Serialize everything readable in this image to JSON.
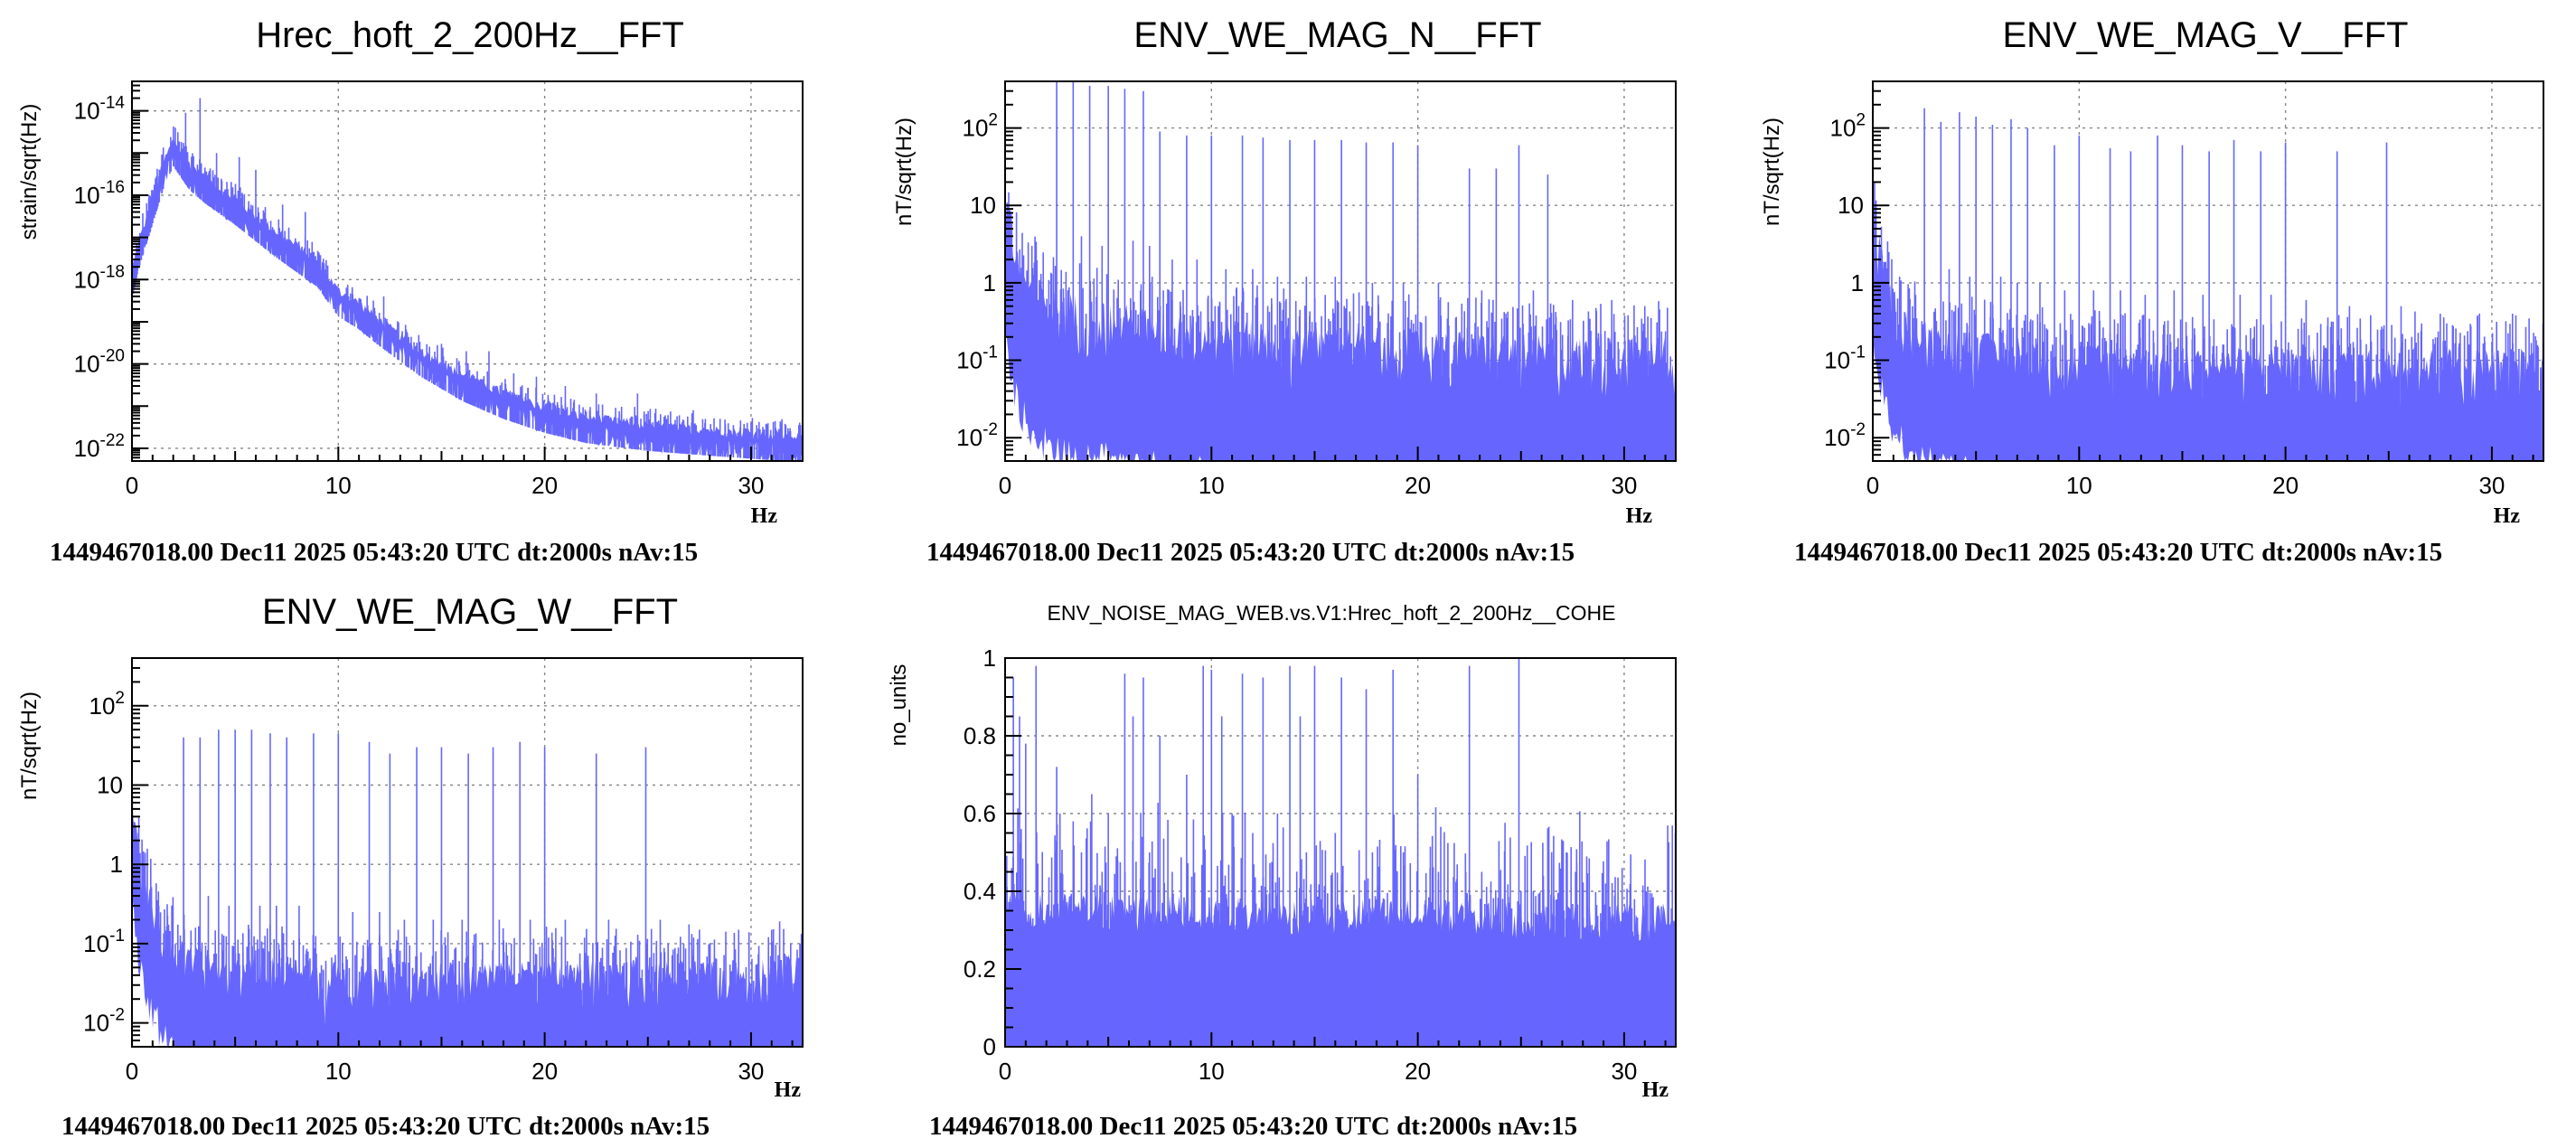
{
  "footer_text": "1449467018.00 Dec11 2025 05:43:20 UTC dt:2000s nAv:15",
  "series_color": "#6666ff",
  "chart_data": [
    {
      "id": "hrec",
      "type": "line",
      "title": "Hrec_hoft_2_200Hz__FFT",
      "ylabel": "strain/sqrt(Hz)",
      "xlabel": "Hz",
      "yscale": "log",
      "xlim": [
        0,
        32.5
      ],
      "ylim": [
        5e-23,
        5e-14
      ],
      "xticks": [
        0,
        10,
        20,
        30
      ],
      "yticks": [
        {
          "v": 1e-14,
          "b": "10",
          "e": "-14"
        },
        {
          "v": 1e-16,
          "b": "10",
          "e": "-16"
        },
        {
          "v": 1e-18,
          "b": "10",
          "e": "-18"
        },
        {
          "v": 1e-20,
          "b": "10",
          "e": "-20"
        },
        {
          "v": 1e-22,
          "b": "10",
          "e": "-22"
        }
      ],
      "envelope": [
        [
          0,
          1e-18
        ],
        [
          0.3,
          5e-18
        ],
        [
          0.8,
          3e-17
        ],
        [
          1.5,
          4e-16
        ],
        [
          2.0,
          1.5e-15
        ],
        [
          2.8,
          4e-16
        ],
        [
          3.5,
          2e-16
        ],
        [
          5,
          6e-17
        ],
        [
          7,
          1e-17
        ],
        [
          9,
          2e-18
        ],
        [
          10,
          4e-19
        ],
        [
          11,
          2e-19
        ],
        [
          12,
          8e-20
        ],
        [
          14,
          1.5e-20
        ],
        [
          16,
          4e-21
        ],
        [
          18,
          1.5e-21
        ],
        [
          20,
          7e-22
        ],
        [
          22,
          4e-22
        ],
        [
          25,
          2.6e-22
        ],
        [
          28,
          2e-22
        ],
        [
          30,
          1.7e-22
        ],
        [
          32.5,
          1.4e-22
        ]
      ],
      "spread": 2.2,
      "peaks": [
        [
          2.1,
          4e-15
        ],
        [
          2.6,
          9e-15
        ],
        [
          3.3,
          2e-14
        ],
        [
          4.1,
          1e-15
        ],
        [
          5.2,
          8e-16
        ],
        [
          6,
          4e-16
        ],
        [
          7.3,
          6e-17
        ],
        [
          8.4,
          4e-17
        ],
        [
          10.5,
          4e-19
        ],
        [
          12.2,
          4e-19
        ],
        [
          13.1,
          6e-20
        ],
        [
          15,
          3e-20
        ],
        [
          16.2,
          2e-20
        ],
        [
          17.3,
          2e-20
        ],
        [
          18.5,
          6e-21
        ],
        [
          19.6,
          5e-21
        ],
        [
          21,
          3e-21
        ],
        [
          22.5,
          2e-21
        ],
        [
          24.5,
          2e-21
        ],
        [
          27.2,
          8e-22
        ],
        [
          28.5,
          5e-22
        ],
        [
          30,
          4e-22
        ]
      ]
    },
    {
      "id": "mag-n",
      "type": "line",
      "title": "ENV_WE_MAG_N__FFT",
      "ylabel": "nT/sqrt(Hz)",
      "xlabel": "Hz",
      "yscale": "log",
      "xlim": [
        0,
        32.5
      ],
      "ylim": [
        0.005,
        400
      ],
      "xticks": [
        0,
        10,
        20,
        30
      ],
      "yticks": [
        {
          "v": 100,
          "b": "10",
          "e": "2"
        },
        {
          "v": 10,
          "b": "10",
          "e": ""
        },
        {
          "v": 1,
          "b": "1",
          "e": ""
        },
        {
          "v": 0.1,
          "b": "10",
          "e": "-1"
        },
        {
          "v": 0.01,
          "b": "10",
          "e": "-2"
        }
      ],
      "envelope": [
        [
          0,
          3
        ],
        [
          0.5,
          0.5
        ],
        [
          1,
          0.25
        ],
        [
          2,
          0.12
        ],
        [
          5,
          0.08
        ],
        [
          10,
          0.05
        ],
        [
          15,
          0.04
        ],
        [
          20,
          0.035
        ],
        [
          25,
          0.03
        ],
        [
          32.5,
          0.028
        ]
      ],
      "spread": 18,
      "peaks": [
        [
          2.5,
          400
        ],
        [
          3.3,
          400
        ],
        [
          4.1,
          350
        ],
        [
          5.0,
          350
        ],
        [
          5.8,
          320
        ],
        [
          6.7,
          300
        ],
        [
          7.5,
          90
        ],
        [
          8.8,
          80
        ],
        [
          10.0,
          80
        ],
        [
          11.5,
          80
        ],
        [
          12.5,
          75
        ],
        [
          13.8,
          70
        ],
        [
          15.0,
          70
        ],
        [
          16.3,
          70
        ],
        [
          17.5,
          65
        ],
        [
          18.8,
          65
        ],
        [
          20.0,
          60
        ],
        [
          22.5,
          30
        ],
        [
          23.8,
          30
        ],
        [
          24.9,
          60
        ],
        [
          26.3,
          25
        ]
      ],
      "lines": [
        [
          1.3,
          3
        ],
        [
          3.7,
          4
        ],
        [
          4.7,
          3
        ],
        [
          6.2,
          3.5
        ],
        [
          7.0,
          3
        ],
        [
          8.1,
          2
        ],
        [
          9.3,
          2
        ],
        [
          10.7,
          1.5
        ],
        [
          12.0,
          1.5
        ],
        [
          13.2,
          1.2
        ],
        [
          14.6,
          1.2
        ],
        [
          16.0,
          1.2
        ],
        [
          17.8,
          1
        ],
        [
          19.3,
          1
        ],
        [
          21.0,
          1
        ],
        [
          23.1,
          0.8
        ],
        [
          25.6,
          0.8
        ],
        [
          27.5,
          0.6
        ],
        [
          29.4,
          0.6
        ],
        [
          31.0,
          0.5
        ]
      ]
    },
    {
      "id": "mag-v",
      "type": "line",
      "title": "ENV_WE_MAG_V__FFT",
      "ylabel": "nT/sqrt(Hz)",
      "xlabel": "Hz",
      "yscale": "log",
      "xlim": [
        0,
        32.5
      ],
      "ylim": [
        0.005,
        400
      ],
      "xticks": [
        0,
        10,
        20,
        30
      ],
      "yticks": [
        {
          "v": 100,
          "b": "10",
          "e": "2"
        },
        {
          "v": 10,
          "b": "10",
          "e": ""
        },
        {
          "v": 1,
          "b": "1",
          "e": ""
        },
        {
          "v": 0.1,
          "b": "10",
          "e": "-1"
        },
        {
          "v": 0.01,
          "b": "10",
          "e": "-2"
        }
      ],
      "envelope": [
        [
          0,
          2.5
        ],
        [
          0.5,
          0.4
        ],
        [
          1,
          0.15
        ],
        [
          2,
          0.06
        ],
        [
          5,
          0.04
        ],
        [
          9,
          0.03
        ],
        [
          9.3,
          0.015
        ],
        [
          9.7,
          0.03
        ],
        [
          15,
          0.025
        ],
        [
          20,
          0.025
        ],
        [
          25,
          0.025
        ],
        [
          32.5,
          0.025
        ]
      ],
      "spread": 14,
      "peaks": [
        [
          2.5,
          180
        ],
        [
          3.3,
          120
        ],
        [
          4.2,
          160
        ],
        [
          5.0,
          140
        ],
        [
          5.8,
          110
        ],
        [
          6.7,
          130
        ],
        [
          7.5,
          100
        ],
        [
          8.8,
          60
        ],
        [
          10.0,
          80
        ],
        [
          11.5,
          55
        ],
        [
          12.5,
          50
        ],
        [
          13.8,
          80
        ],
        [
          15.0,
          60
        ],
        [
          16.3,
          50
        ],
        [
          17.5,
          70
        ],
        [
          18.8,
          50
        ],
        [
          20.0,
          65
        ],
        [
          22.5,
          50
        ],
        [
          24.9,
          65
        ]
      ],
      "lines": [
        [
          1.3,
          1.2
        ],
        [
          3.7,
          1.5
        ],
        [
          4.7,
          1.2
        ],
        [
          6.2,
          1.2
        ],
        [
          7.0,
          1
        ],
        [
          8.1,
          1
        ],
        [
          9.3,
          0.8
        ],
        [
          10.7,
          0.8
        ],
        [
          12.0,
          0.8
        ],
        [
          13.2,
          0.7
        ],
        [
          14.6,
          0.8
        ],
        [
          16.0,
          0.7
        ],
        [
          17.8,
          0.7
        ],
        [
          19.3,
          0.7
        ],
        [
          21.0,
          0.6
        ],
        [
          23.1,
          0.5
        ],
        [
          25.6,
          0.5
        ],
        [
          27.5,
          0.4
        ],
        [
          29.4,
          0.4
        ],
        [
          31.0,
          0.4
        ]
      ]
    },
    {
      "id": "mag-w",
      "type": "line",
      "title": "ENV_WE_MAG_W__FFT",
      "ylabel": "nT/sqrt(Hz)",
      "xlabel": "Hz",
      "yscale": "log",
      "xlim": [
        0,
        32.5
      ],
      "ylim": [
        0.005,
        400
      ],
      "xticks": [
        0,
        10,
        20,
        30
      ],
      "yticks": [
        {
          "v": 100,
          "b": "10",
          "e": "2"
        },
        {
          "v": 10,
          "b": "10",
          "e": ""
        },
        {
          "v": 1,
          "b": "1",
          "e": ""
        },
        {
          "v": 0.1,
          "b": "10",
          "e": "-1"
        },
        {
          "v": 0.01,
          "b": "10",
          "e": "-2"
        }
      ],
      "envelope": [
        [
          0,
          2.5
        ],
        [
          0.3,
          0.6
        ],
        [
          0.8,
          0.15
        ],
        [
          1.5,
          0.05
        ],
        [
          2.5,
          0.025
        ],
        [
          5,
          0.018
        ],
        [
          9,
          0.015
        ],
        [
          9.3,
          0.008
        ],
        [
          9.8,
          0.015
        ],
        [
          15,
          0.015
        ],
        [
          20,
          0.015
        ],
        [
          25,
          0.015
        ],
        [
          30,
          0.015
        ],
        [
          32.5,
          0.02
        ]
      ],
      "spread": 9,
      "peaks": [
        [
          2.5,
          40
        ],
        [
          3.3,
          40
        ],
        [
          4.2,
          50
        ],
        [
          5.0,
          50
        ],
        [
          5.8,
          50
        ],
        [
          6.7,
          45
        ],
        [
          7.5,
          40
        ],
        [
          8.8,
          45
        ],
        [
          10.0,
          45
        ],
        [
          11.5,
          35
        ],
        [
          12.5,
          25
        ],
        [
          13.8,
          30
        ],
        [
          15.0,
          30
        ],
        [
          16.3,
          25
        ],
        [
          17.5,
          30
        ],
        [
          18.8,
          35
        ],
        [
          20.0,
          30
        ],
        [
          22.5,
          25
        ],
        [
          24.9,
          30
        ]
      ],
      "lines": [
        [
          1.3,
          0.3
        ],
        [
          3.7,
          0.4
        ],
        [
          4.7,
          0.3
        ],
        [
          6.2,
          0.3
        ],
        [
          7.0,
          0.3
        ],
        [
          8.1,
          0.3
        ],
        [
          10.7,
          0.25
        ],
        [
          12.0,
          0.25
        ],
        [
          13.2,
          0.2
        ],
        [
          14.6,
          0.2
        ],
        [
          16.0,
          0.2
        ],
        [
          17.8,
          0.2
        ],
        [
          19.3,
          0.2
        ],
        [
          21.0,
          0.2
        ],
        [
          23.1,
          0.2
        ],
        [
          25.6,
          0.2
        ],
        [
          27.5,
          0.15
        ],
        [
          29.4,
          0.15
        ],
        [
          31.0,
          0.15
        ]
      ]
    },
    {
      "id": "cohe",
      "type": "line",
      "title": "ENV_NOISE_MAG_WEB.vs.V1:Hrec_hoft_2_200Hz__COHE",
      "ylabel": "no_units",
      "xlabel": "Hz",
      "yscale": "linear",
      "xlim": [
        0,
        32.5
      ],
      "ylim": [
        0,
        1
      ],
      "xticks": [
        0,
        10,
        20,
        30
      ],
      "yticks": [
        {
          "v": 0,
          "b": "0",
          "e": ""
        },
        {
          "v": 0.2,
          "b": "0.2",
          "e": ""
        },
        {
          "v": 0.4,
          "b": "0.4",
          "e": ""
        },
        {
          "v": 0.6,
          "b": "0.6",
          "e": ""
        },
        {
          "v": 0.8,
          "b": "0.8",
          "e": ""
        },
        {
          "v": 1,
          "b": "1",
          "e": ""
        }
      ],
      "envelope": [
        [
          0,
          0.3
        ],
        [
          32.5,
          0.27
        ]
      ],
      "spread": 0.1,
      "peaks": [
        [
          0.4,
          0.95
        ],
        [
          0.7,
          0.85
        ],
        [
          1.0,
          0.78
        ],
        [
          1.5,
          0.98
        ],
        [
          2.5,
          0.72
        ],
        [
          3.3,
          0.58
        ],
        [
          4.2,
          0.65
        ],
        [
          5.0,
          0.6
        ],
        [
          5.8,
          0.96
        ],
        [
          6.2,
          0.85
        ],
        [
          6.7,
          0.95
        ],
        [
          7.5,
          0.8
        ],
        [
          8.8,
          0.7
        ],
        [
          9.6,
          0.98
        ],
        [
          10.0,
          0.97
        ],
        [
          10.5,
          0.85
        ],
        [
          11.5,
          0.96
        ],
        [
          12.5,
          0.95
        ],
        [
          13.8,
          0.98
        ],
        [
          14.3,
          0.85
        ],
        [
          15.0,
          0.98
        ],
        [
          16.3,
          0.95
        ],
        [
          17.5,
          0.92
        ],
        [
          18.8,
          0.97
        ],
        [
          20.0,
          0.7
        ],
        [
          22.5,
          0.98
        ],
        [
          24.9,
          1.0
        ],
        [
          27.2,
          0.5
        ],
        [
          29.1,
          0.42
        ]
      ],
      "lines": [
        [
          3.7,
          0.5
        ],
        [
          4.7,
          0.45
        ],
        [
          7.0,
          0.5
        ],
        [
          8.1,
          0.45
        ],
        [
          11.0,
          0.6
        ],
        [
          12.0,
          0.55
        ],
        [
          13.2,
          0.6
        ],
        [
          14.6,
          0.5
        ],
        [
          16.0,
          0.55
        ],
        [
          17.8,
          0.5
        ],
        [
          19.3,
          0.5
        ],
        [
          21.0,
          0.45
        ],
        [
          23.1,
          0.45
        ],
        [
          25.6,
          0.4
        ],
        [
          30.5,
          0.38
        ]
      ]
    }
  ]
}
